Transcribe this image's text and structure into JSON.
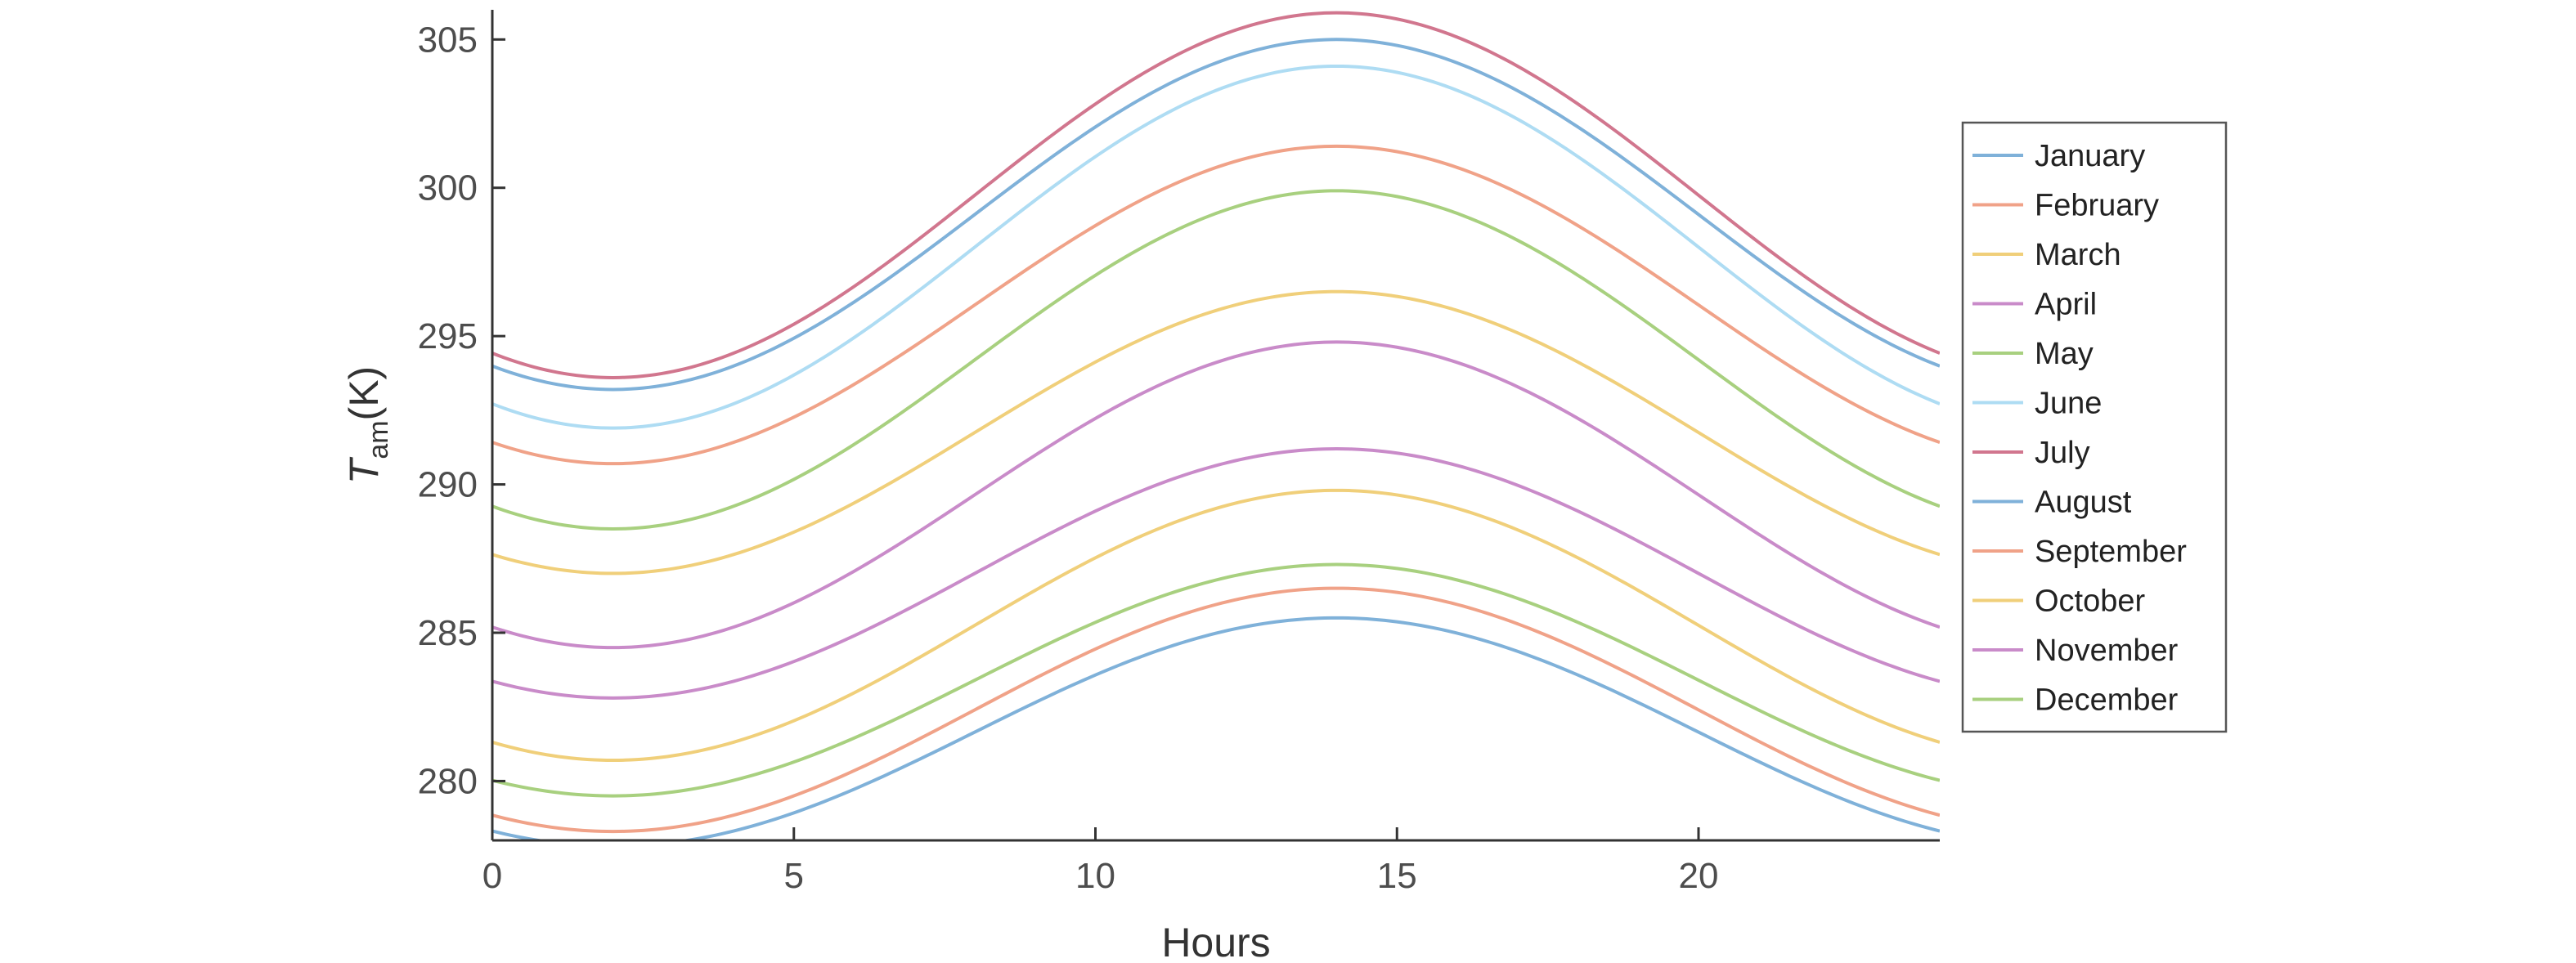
{
  "chart_data": {
    "type": "line",
    "title": "",
    "xlabel": "Hours",
    "ylabel_main": "T",
    "ylabel_sub": "am",
    "ylabel_unit": "(K)",
    "xlim": [
      0,
      24
    ],
    "ylim": [
      278,
      306
    ],
    "xticks": [
      0,
      5,
      10,
      15,
      20
    ],
    "xtick_labels": [
      "0",
      "5",
      "10",
      "15",
      "20"
    ],
    "yticks": [
      280,
      285,
      290,
      295,
      300,
      305
    ],
    "ytick_labels": [
      "280",
      "285",
      "290",
      "295",
      "300",
      "305"
    ],
    "grid": false,
    "legend_position": "right",
    "min_hour": 2,
    "max_hour": 14,
    "series": [
      {
        "name": "January",
        "color": "#7fb1d9",
        "min": 277.8,
        "max": 285.5
      },
      {
        "name": "February",
        "color": "#f0a288",
        "min": 278.3,
        "max": 286.5
      },
      {
        "name": "March",
        "color": "#f0cf7a",
        "min": 280.7,
        "max": 289.8
      },
      {
        "name": "April",
        "color": "#c98bc9",
        "min": 284.5,
        "max": 294.8
      },
      {
        "name": "May",
        "color": "#a8d07f",
        "min": 288.5,
        "max": 299.9
      },
      {
        "name": "June",
        "color": "#aedcf3",
        "min": 291.9,
        "max": 304.1
      },
      {
        "name": "July",
        "color": "#d1768e",
        "min": 293.6,
        "max": 305.9
      },
      {
        "name": "August",
        "color": "#7fb1d9",
        "min": 293.2,
        "max": 305.0
      },
      {
        "name": "September",
        "color": "#f0a288",
        "min": 290.7,
        "max": 301.4
      },
      {
        "name": "October",
        "color": "#f0cf7a",
        "min": 287.0,
        "max": 296.5
      },
      {
        "name": "November",
        "color": "#c98bc9",
        "min": 282.8,
        "max": 291.2
      },
      {
        "name": "December",
        "color": "#a8d07f",
        "min": 279.5,
        "max": 287.3
      }
    ]
  }
}
